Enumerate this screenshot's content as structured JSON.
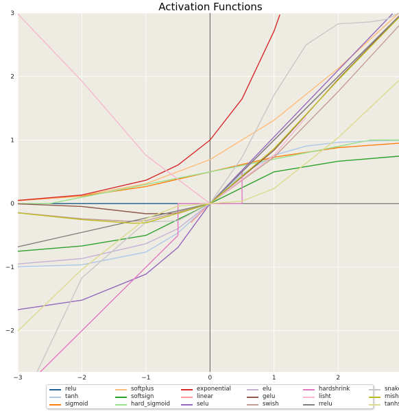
{
  "chart_data": {
    "type": "line",
    "title": "Activation Functions",
    "xlabel": "",
    "ylabel": "",
    "xlim": [
      -3,
      2.95
    ],
    "ylim": [
      -2.65,
      3.0
    ],
    "xticks": [
      -3,
      -2,
      -1,
      0,
      1,
      2
    ],
    "yticks": [
      -2,
      -1,
      0,
      1,
      2,
      3
    ],
    "grid": true,
    "legend_position": "bottom",
    "background_color": "#eeece2",
    "series": [
      {
        "name": "relu",
        "color": "#1f5f94",
        "x": [
          -3,
          0,
          2.95
        ],
        "y": [
          0,
          0,
          2.95
        ]
      },
      {
        "name": "tanh",
        "color": "#aec7e8",
        "x": [
          -3,
          -2,
          -1,
          -0.5,
          0,
          0.5,
          1,
          1.5,
          2,
          2.5,
          2.95
        ],
        "y": [
          -0.995,
          -0.964,
          -0.762,
          -0.462,
          0,
          0.462,
          0.762,
          0.905,
          0.964,
          0.987,
          0.995
        ]
      },
      {
        "name": "sigmoid",
        "color": "#ff7f0e",
        "x": [
          -3,
          -2,
          -1,
          0,
          1,
          2,
          2.95
        ],
        "y": [
          0.047,
          0.119,
          0.269,
          0.5,
          0.731,
          0.881,
          0.95
        ]
      },
      {
        "name": "softplus",
        "color": "#ffbb78",
        "x": [
          -3,
          -2,
          -1,
          0,
          1,
          2,
          2.95
        ],
        "y": [
          0.049,
          0.127,
          0.313,
          0.693,
          1.313,
          2.127,
          3.0
        ]
      },
      {
        "name": "softsign",
        "color": "#2ca02c",
        "x": [
          -3,
          -2,
          -1,
          0,
          1,
          2,
          2.95
        ],
        "y": [
          -0.75,
          -0.667,
          -0.5,
          0,
          0.5,
          0.667,
          0.747
        ]
      },
      {
        "name": "hard_sigmoid",
        "color": "#98df8a",
        "x": [
          -3,
          -2.5,
          0,
          2.5,
          2.95
        ],
        "y": [
          0,
          0,
          0.5,
          1,
          1
        ]
      },
      {
        "name": "exponential",
        "color": "#d62728",
        "x": [
          -3,
          -2,
          -1,
          -0.5,
          0,
          0.5,
          1,
          1.09
        ],
        "y": [
          0.05,
          0.135,
          0.368,
          0.607,
          1,
          1.649,
          2.718,
          2.974
        ]
      },
      {
        "name": "linear",
        "color": "#ff9896",
        "x": [
          -0.3,
          0,
          0.3
        ],
        "y": [
          -0.3,
          0,
          0.3
        ]
      },
      {
        "name": "selu",
        "color": "#9467bd",
        "x": [
          -3,
          -2,
          -1,
          -0.5,
          0,
          1,
          2,
          2.85
        ],
        "y": [
          -1.67,
          -1.52,
          -1.11,
          -0.69,
          0,
          1.05,
          2.1,
          2.99
        ]
      },
      {
        "name": "elu",
        "color": "#c5b0d5",
        "x": [
          -3,
          -2,
          -1,
          -0.5,
          0,
          1,
          2,
          2.95
        ],
        "y": [
          -0.95,
          -0.865,
          -0.632,
          -0.393,
          0,
          1,
          2,
          2.95
        ]
      },
      {
        "name": "gelu",
        "color": "#8c564b",
        "x": [
          -3,
          -2,
          -1,
          -0.5,
          0,
          1,
          2,
          2.95
        ],
        "y": [
          -0.004,
          -0.045,
          -0.159,
          -0.154,
          0,
          0.841,
          1.955,
          2.945
        ]
      },
      {
        "name": "swish",
        "color": "#c49c94",
        "x": [
          -3,
          -2,
          -1.28,
          -1,
          0,
          1,
          2,
          2.95
        ],
        "y": [
          -0.142,
          -0.238,
          -0.278,
          -0.269,
          0,
          0.731,
          1.762,
          2.8
        ]
      },
      {
        "name": "hardshrink",
        "color": "#e377c2",
        "x": [
          -3,
          -0.5,
          -0.5,
          0.5,
          0.5,
          2.95
        ],
        "y": [
          -3,
          -0.5,
          0,
          0,
          0.5,
          2.95
        ]
      },
      {
        "name": "lisht",
        "color": "#f7b6d2",
        "x": [
          -3,
          -2,
          -1,
          0,
          1,
          1.5
        ],
        "y": [
          2.985,
          1.928,
          0.762,
          0,
          0.762,
          1.358
        ]
      },
      {
        "name": "rrelu",
        "color": "#7f7f7f",
        "x": [
          -3,
          0,
          2.95
        ],
        "y": [
          -0.68,
          0,
          2.95
        ]
      },
      {
        "name": "snake",
        "color": "#c7c7c7",
        "x": [
          -2.7,
          -2,
          -1,
          -0.5,
          0,
          0.5,
          1,
          1.5,
          2,
          2.5,
          2.75,
          2.95
        ],
        "y": [
          -2.65,
          -1.17,
          -0.29,
          -0.27,
          0,
          0.73,
          1.71,
          2.5,
          2.83,
          2.86,
          2.9,
          3.0
        ]
      },
      {
        "name": "mish",
        "color": "#bcbd22",
        "x": [
          -3,
          -2,
          -1.2,
          -1,
          0,
          1,
          2,
          2.95
        ],
        "y": [
          -0.146,
          -0.252,
          -0.309,
          -0.303,
          0,
          0.865,
          1.944,
          2.93
        ]
      },
      {
        "name": "tanhshrink",
        "color": "#dbdb8d",
        "x": [
          -3,
          -2,
          -1,
          -0.5,
          0,
          0.5,
          1,
          2,
          2.95
        ],
        "y": [
          -2.005,
          -1.036,
          -0.238,
          -0.038,
          0,
          0.038,
          0.238,
          1.036,
          1.94
        ]
      }
    ]
  }
}
